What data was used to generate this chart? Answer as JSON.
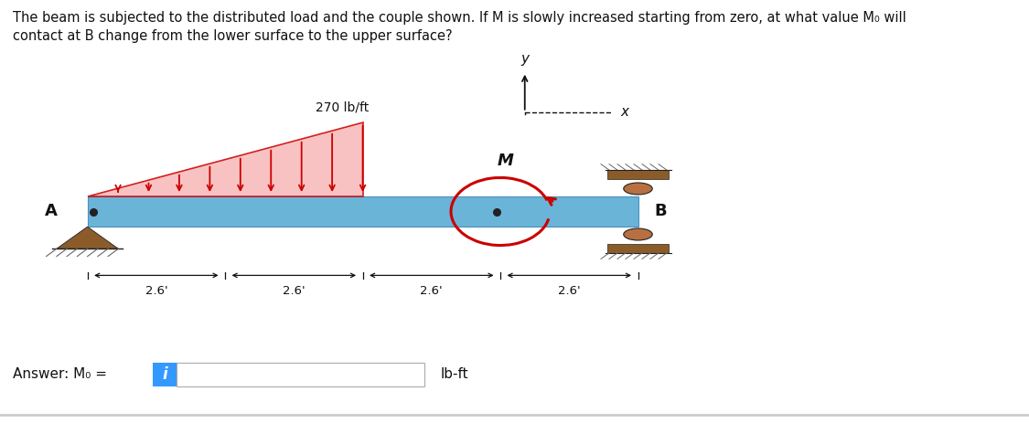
{
  "title_line1": "The beam is subjected to the distributed load and the couple shown. If M is slowly increased starting from zero, at what value M₀ will",
  "title_line2": "contact at B change from the lower surface to the upper surface?",
  "title_fontsize": 10.5,
  "beam_color": "#6ab4d8",
  "beam_edge_color": "#4a90c0",
  "load_color": "#cc0000",
  "load_fill": "#f5a0a0",
  "load_label": "270 lb/ft",
  "spacing_label": "2.6'",
  "answer_label": "Answer: M₀ =",
  "units_label": "lb-ft",
  "M_label": "M",
  "A_label": "A",
  "B_label": "B",
  "coord_x_label": "x",
  "coord_y_label": "y",
  "background_color": "#ffffff",
  "support_color": "#8B5C2A",
  "ground_color": "#666666",
  "info_button_color": "#3399ff",
  "bx0": 0.085,
  "bx1": 0.62,
  "by": 0.5,
  "bh": 0.072
}
